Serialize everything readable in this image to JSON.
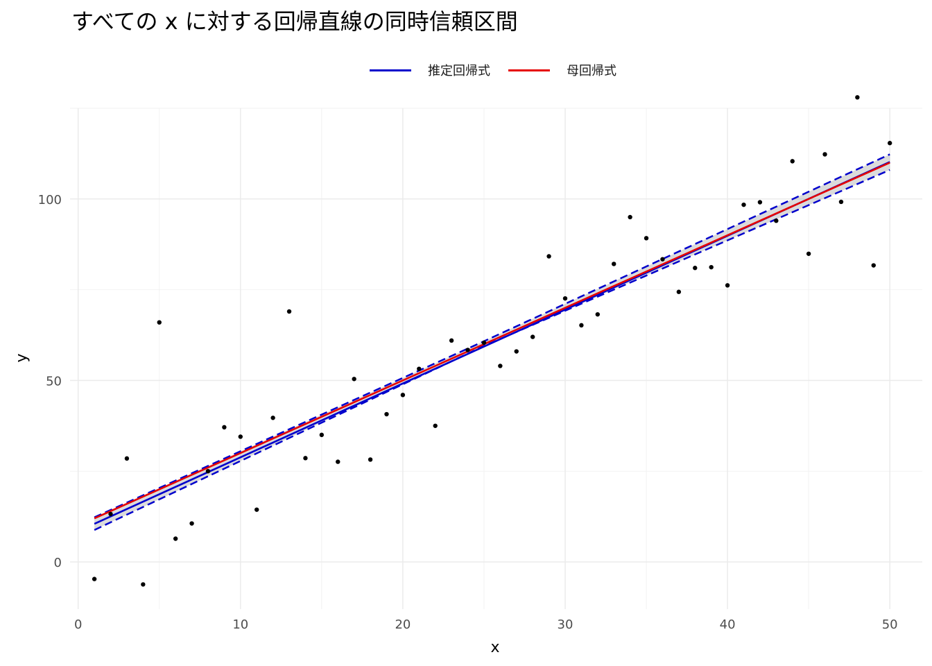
{
  "chart_data": {
    "type": "line",
    "title": "すべての x に対する回帰直線の同時信頼区間",
    "xlabel": "x",
    "ylabel": "y",
    "xlim": [
      -0.5,
      52
    ],
    "ylim": [
      -13,
      125
    ],
    "x_ticks": [
      0,
      10,
      20,
      30,
      40,
      50
    ],
    "y_ticks": [
      0,
      50,
      100
    ],
    "grid": true,
    "legend_position": "top",
    "series": [
      {
        "name": "推定回帰式",
        "color": "#0000cc",
        "x": [
          1,
          50
        ],
        "y": [
          10.5,
          110.2
        ]
      },
      {
        "name": "母回帰式",
        "color": "#e60000",
        "x": [
          1,
          50
        ],
        "y": [
          12,
          110
        ]
      }
    ],
    "confidence_band": {
      "color": "#0000cc",
      "x": [
        1,
        25,
        50
      ],
      "lower": [
        8.8,
        59.5,
        108.0
      ],
      "upper": [
        12.3,
        60.8,
        112.3
      ]
    },
    "points": {
      "x": [
        1,
        2,
        3,
        4,
        5,
        6,
        7,
        8,
        9,
        10,
        11,
        12,
        13,
        14,
        15,
        16,
        17,
        18,
        19,
        20,
        21,
        22,
        23,
        24,
        25,
        26,
        27,
        28,
        29,
        30,
        31,
        32,
        33,
        34,
        35,
        36,
        37,
        38,
        39,
        40,
        41,
        42,
        43,
        44,
        45,
        46,
        47,
        48,
        49,
        50
      ],
      "y": [
        -4.7,
        13.2,
        28.5,
        -6.2,
        66,
        6.4,
        10.6,
        25,
        37.1,
        34.5,
        14.4,
        39.7,
        69,
        28.6,
        35,
        27.6,
        50.4,
        28.2,
        40.7,
        46,
        53.2,
        37.5,
        61,
        58.4,
        60.4,
        54,
        58,
        62,
        84.2,
        72.6,
        65.2,
        68.2,
        82.1,
        95,
        89.2,
        83.4,
        74.4,
        81,
        81.2,
        76.2,
        98.4,
        99.1,
        94,
        110.4,
        84.9,
        112.3,
        99.2,
        128,
        81.7,
        115.4
      ]
    }
  }
}
